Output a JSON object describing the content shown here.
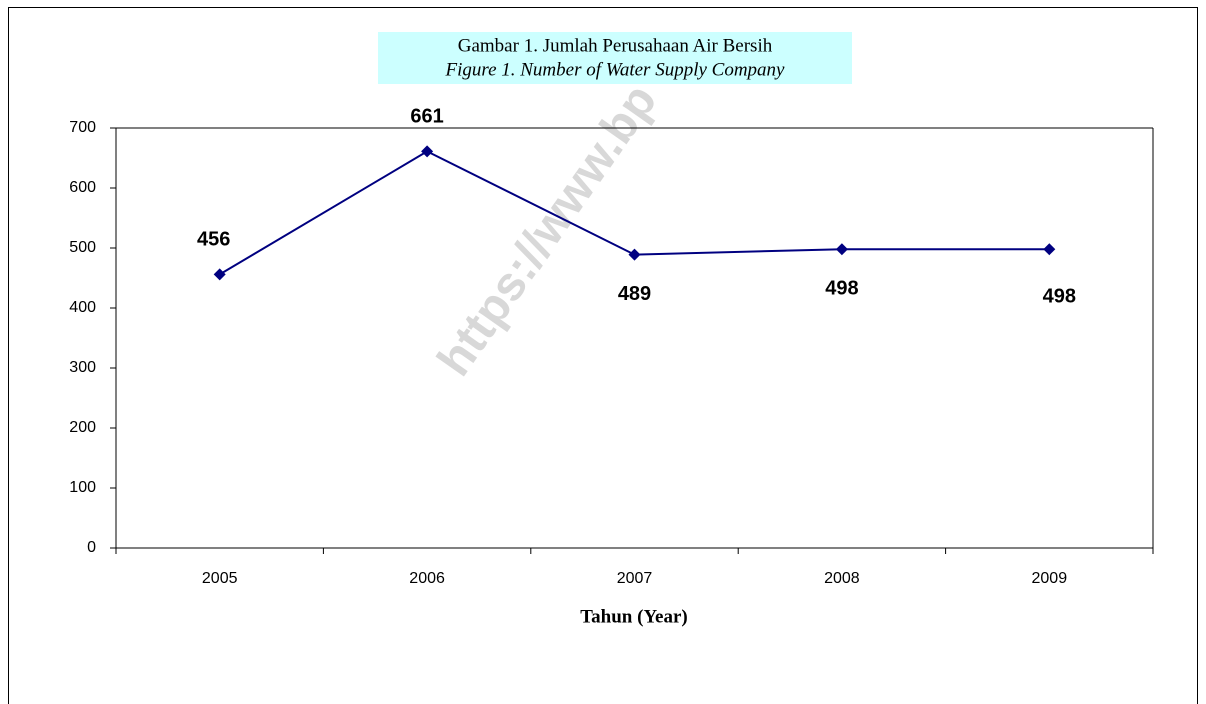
{
  "chart_data": {
    "type": "line",
    "title": "Gambar 1. Jumlah Perusahaan Air Bersih",
    "subtitle": "Figure 1. Number of Water Supply Company",
    "x_label": "Tahun (Year)",
    "watermark": "https://www.bp",
    "categories": [
      "2005",
      "2006",
      "2007",
      "2008",
      "2009"
    ],
    "series": [
      {
        "name": "Jumlah Perusahaan",
        "color": "#000080",
        "values": [
          456,
          661,
          489,
          498,
          498
        ]
      }
    ],
    "ylim": [
      0,
      700
    ],
    "yticks": [
      0,
      100,
      200,
      300,
      400,
      500,
      600,
      700
    ],
    "grid": false
  }
}
